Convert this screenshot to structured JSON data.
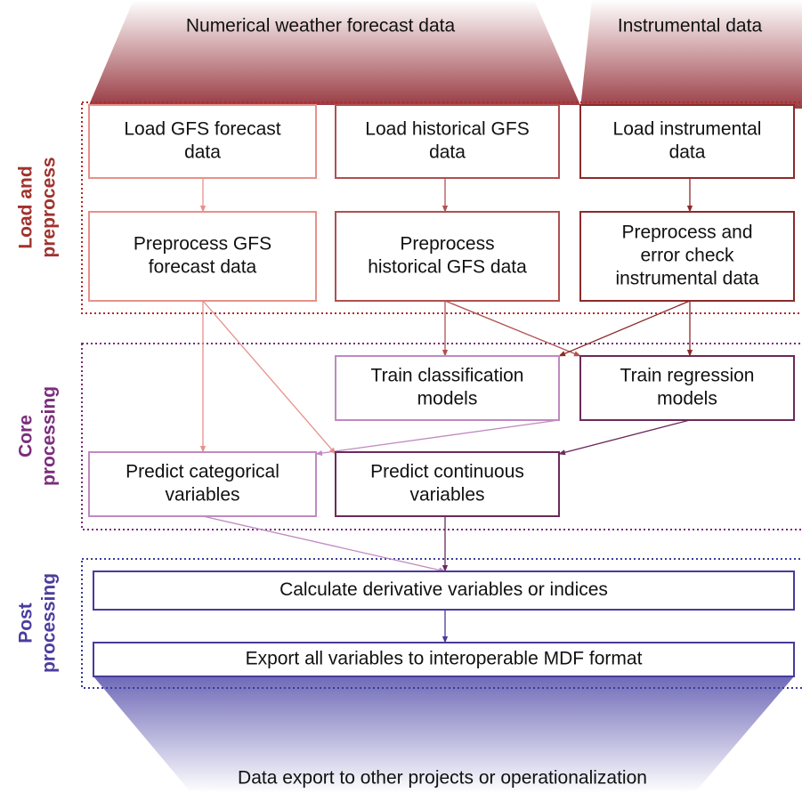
{
  "sources": [
    {
      "label": "Numerical weather forecast data"
    },
    {
      "label": "Instrumental data"
    }
  ],
  "sections": [
    {
      "lines": [
        "Load and",
        "preprocess"
      ]
    },
    {
      "lines": [
        "Core",
        "processing"
      ]
    },
    {
      "lines": [
        "Post",
        "processing"
      ]
    }
  ],
  "boxes": [
    {
      "lines": [
        "Load GFS forecast",
        "data"
      ]
    },
    {
      "lines": [
        "Load historical GFS",
        "data"
      ]
    },
    {
      "lines": [
        "Load instrumental",
        "data"
      ]
    },
    {
      "lines": [
        "Preprocess GFS",
        "forecast data"
      ]
    },
    {
      "lines": [
        "Preprocess",
        "historical GFS data"
      ]
    },
    {
      "lines": [
        "Preprocess and",
        "error check",
        "instrumental data"
      ]
    },
    {
      "lines": [
        "Train classification",
        "models"
      ]
    },
    {
      "lines": [
        "Train regression",
        "models"
      ]
    },
    {
      "lines": [
        "Predict categorical",
        "variables"
      ]
    },
    {
      "lines": [
        "Predict continuous",
        "variables"
      ]
    },
    {
      "lines": [
        "Calculate derivative variables or indices"
      ]
    },
    {
      "lines": [
        "Export all variables to interoperable MDF format"
      ]
    }
  ],
  "sink": {
    "label": "Data export to other projects or operationalization"
  }
}
